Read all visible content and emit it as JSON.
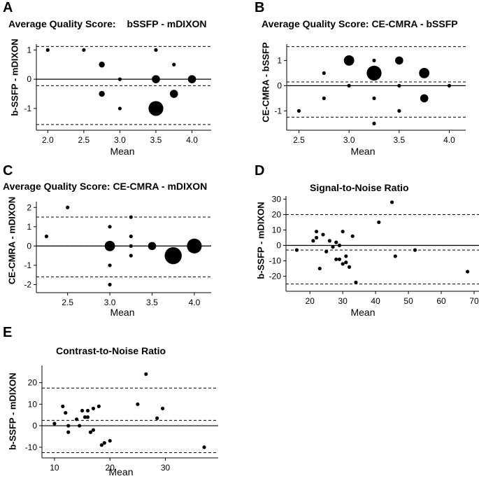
{
  "chart_data": [
    {
      "type": "scatter",
      "panel_label": "A",
      "title": "Average Quality Score:",
      "title_sub": "bSSFP - mDIXON",
      "xlabel": "Mean",
      "ylabel": "b-SSFP - mDIXON",
      "xlim": [
        1.9,
        4.15
      ],
      "ylim": [
        -1.6,
        1.2
      ],
      "xticks": [
        2.0,
        2.5,
        3.0,
        3.5,
        4.0
      ],
      "xtick_labels": [
        "2.0",
        "2.5",
        "3.0",
        "3.5",
        "4.0"
      ],
      "yticks": [
        -1,
        0,
        1
      ],
      "ytick_labels": [
        "-1",
        "0",
        "1"
      ],
      "zero_line": 0,
      "ref_lines": [
        1.12,
        -0.22,
        -1.55
      ],
      "points": [
        {
          "x": 2.0,
          "y": 1,
          "n": 1
        },
        {
          "x": 2.5,
          "y": 1,
          "n": 1
        },
        {
          "x": 2.75,
          "y": 0.5,
          "n": 2
        },
        {
          "x": 2.75,
          "y": -0.5,
          "n": 2
        },
        {
          "x": 3.0,
          "y": 0,
          "n": 1
        },
        {
          "x": 3.0,
          "y": -1,
          "n": 1
        },
        {
          "x": 3.5,
          "y": 1,
          "n": 1
        },
        {
          "x": 3.5,
          "y": 0,
          "n": 3
        },
        {
          "x": 3.5,
          "y": -1,
          "n": 6
        },
        {
          "x": 3.75,
          "y": 0.5,
          "n": 1
        },
        {
          "x": 3.75,
          "y": -0.5,
          "n": 3
        },
        {
          "x": 4.0,
          "y": 0,
          "n": 3
        }
      ]
    },
    {
      "type": "scatter",
      "panel_label": "B",
      "title": "Average Quality Score:",
      "title_sub": "CE-CMRA - bSSFP",
      "xlabel": "Mean",
      "ylabel": "CE-CMRA - bSSFP",
      "xlim": [
        2.42,
        4.08
      ],
      "ylim": [
        -1.6,
        1.65
      ],
      "xticks": [
        2.5,
        3.0,
        3.5,
        4.0
      ],
      "xtick_labels": [
        "2.5",
        "3.0",
        "3.5",
        "4.0"
      ],
      "yticks": [
        -1,
        0,
        1
      ],
      "ytick_labels": [
        "-1",
        "0",
        "1"
      ],
      "zero_line": 0,
      "ref_lines": [
        1.55,
        0.15,
        -1.25
      ],
      "points": [
        {
          "x": 2.5,
          "y": -1,
          "n": 1
        },
        {
          "x": 2.75,
          "y": 0.5,
          "n": 1
        },
        {
          "x": 2.75,
          "y": -0.5,
          "n": 1
        },
        {
          "x": 3.0,
          "y": 1,
          "n": 4
        },
        {
          "x": 3.0,
          "y": 0,
          "n": 1
        },
        {
          "x": 3.25,
          "y": 1,
          "n": 1
        },
        {
          "x": 3.25,
          "y": 0.5,
          "n": 6
        },
        {
          "x": 3.25,
          "y": -0.5,
          "n": 1
        },
        {
          "x": 3.25,
          "y": -1.5,
          "n": 1
        },
        {
          "x": 3.5,
          "y": 1,
          "n": 3
        },
        {
          "x": 3.5,
          "y": 0,
          "n": 1
        },
        {
          "x": 3.5,
          "y": -1,
          "n": 1
        },
        {
          "x": 3.75,
          "y": 0.5,
          "n": 4
        },
        {
          "x": 3.75,
          "y": -0.5,
          "n": 3
        },
        {
          "x": 4.0,
          "y": 0,
          "n": 1
        }
      ]
    },
    {
      "type": "scatter",
      "panel_label": "C",
      "title": "Average Quality Score:",
      "title_sub": "CE-CMRA - mDIXON",
      "xlabel": "Mean",
      "ylabel": "CE-CMRA - mDIXON",
      "xlim": [
        2.18,
        4.1
      ],
      "ylim": [
        -2.2,
        2.3
      ],
      "xticks": [
        2.5,
        3.0,
        3.5,
        4.0
      ],
      "xtick_labels": [
        "2.5",
        "3.0",
        "3.5",
        "4.0"
      ],
      "yticks": [
        -2,
        -1,
        0,
        1,
        2
      ],
      "ytick_labels": [
        "-2",
        "-1",
        "0",
        "1",
        "2"
      ],
      "zero_line": 0,
      "ref_lines": [
        1.5,
        0.0,
        -1.6
      ],
      "points": [
        {
          "x": 2.25,
          "y": 0.5,
          "n": 1
        },
        {
          "x": 2.5,
          "y": 2,
          "n": 1
        },
        {
          "x": 3.0,
          "y": 1,
          "n": 1
        },
        {
          "x": 3.0,
          "y": 0,
          "n": 4
        },
        {
          "x": 3.0,
          "y": -1,
          "n": 1
        },
        {
          "x": 3.0,
          "y": -2,
          "n": 1
        },
        {
          "x": 3.25,
          "y": 1.5,
          "n": 1
        },
        {
          "x": 3.25,
          "y": 0.5,
          "n": 1
        },
        {
          "x": 3.25,
          "y": 0,
          "n": 1
        },
        {
          "x": 3.25,
          "y": -0.5,
          "n": 1
        },
        {
          "x": 3.5,
          "y": 0,
          "n": 3
        },
        {
          "x": 3.75,
          "y": -0.5,
          "n": 7
        },
        {
          "x": 4.0,
          "y": 0,
          "n": 6
        }
      ]
    },
    {
      "type": "scatter",
      "panel_label": "D",
      "title": "Signal-to-Noise Ratio",
      "title_sub": "",
      "xlabel": "Mean",
      "ylabel": "b-SSFP - mDIXON",
      "xlim": [
        14,
        70
      ],
      "ylim": [
        -27,
        32
      ],
      "xticks": [
        20,
        30,
        40,
        50,
        60,
        70
      ],
      "xtick_labels": [
        "20",
        "30",
        "40",
        "50",
        "60",
        "70"
      ],
      "yticks": [
        -20,
        -10,
        0,
        10,
        20,
        30
      ],
      "ytick_labels": [
        "-20",
        "-10",
        "0",
        "10",
        "20",
        "30"
      ],
      "zero_line": 0,
      "ref_lines": [
        20,
        -3,
        -25
      ],
      "points": [
        {
          "x": 16,
          "y": -3,
          "n": 1
        },
        {
          "x": 21,
          "y": 3,
          "n": 1
        },
        {
          "x": 22,
          "y": 9,
          "n": 1
        },
        {
          "x": 22,
          "y": 5,
          "n": 1
        },
        {
          "x": 23,
          "y": -15,
          "n": 1
        },
        {
          "x": 24,
          "y": 7,
          "n": 1
        },
        {
          "x": 25,
          "y": -4,
          "n": 1
        },
        {
          "x": 26,
          "y": 3,
          "n": 1
        },
        {
          "x": 27,
          "y": -1,
          "n": 1
        },
        {
          "x": 28,
          "y": 2,
          "n": 1
        },
        {
          "x": 28,
          "y": -9,
          "n": 1
        },
        {
          "x": 29,
          "y": 0,
          "n": 1
        },
        {
          "x": 29,
          "y": -9,
          "n": 1
        },
        {
          "x": 30,
          "y": 9,
          "n": 1
        },
        {
          "x": 30,
          "y": -12,
          "n": 1
        },
        {
          "x": 31,
          "y": -7,
          "n": 1
        },
        {
          "x": 31,
          "y": -11,
          "n": 1
        },
        {
          "x": 32,
          "y": -14,
          "n": 1
        },
        {
          "x": 33,
          "y": 6,
          "n": 1
        },
        {
          "x": 34,
          "y": -24,
          "n": 1
        },
        {
          "x": 41,
          "y": 15,
          "n": 1
        },
        {
          "x": 45,
          "y": 28,
          "n": 1
        },
        {
          "x": 46,
          "y": -7,
          "n": 1
        },
        {
          "x": 52,
          "y": -3,
          "n": 1
        },
        {
          "x": 68,
          "y": -17,
          "n": 1
        }
      ]
    },
    {
      "type": "scatter",
      "panel_label": "E",
      "title": "Contrast-to-Noise Ratio",
      "title_sub": "",
      "xlabel": "Mean",
      "ylabel": "b-SSFP - mDIXON",
      "xlim": [
        8.5,
        38
      ],
      "ylim": [
        -13,
        28
      ],
      "xticks": [
        10,
        20,
        30
      ],
      "xtick_labels": [
        "10",
        "20",
        "30"
      ],
      "yticks": [
        -10,
        0,
        10,
        20
      ],
      "ytick_labels": [
        "-10",
        "0",
        "10",
        "20"
      ],
      "zero_line": 0,
      "ref_lines": [
        17.5,
        2.5,
        -12.5
      ],
      "points": [
        {
          "x": 10,
          "y": 1,
          "n": 1
        },
        {
          "x": 11.5,
          "y": 9,
          "n": 1
        },
        {
          "x": 12,
          "y": 6,
          "n": 1
        },
        {
          "x": 12.5,
          "y": 0,
          "n": 1
        },
        {
          "x": 12.5,
          "y": -3,
          "n": 1
        },
        {
          "x": 14,
          "y": 3,
          "n": 1
        },
        {
          "x": 14.5,
          "y": 0,
          "n": 1
        },
        {
          "x": 15,
          "y": 7,
          "n": 1
        },
        {
          "x": 15.5,
          "y": 4,
          "n": 1
        },
        {
          "x": 16,
          "y": 7,
          "n": 1
        },
        {
          "x": 16,
          "y": 4,
          "n": 1
        },
        {
          "x": 16.5,
          "y": -3,
          "n": 1
        },
        {
          "x": 17,
          "y": 8,
          "n": 1
        },
        {
          "x": 17,
          "y": -2,
          "n": 1
        },
        {
          "x": 18,
          "y": 9,
          "n": 1
        },
        {
          "x": 18.5,
          "y": -9,
          "n": 1
        },
        {
          "x": 19,
          "y": -8,
          "n": 1
        },
        {
          "x": 20,
          "y": -7,
          "n": 1
        },
        {
          "x": 25,
          "y": 10,
          "n": 1
        },
        {
          "x": 26.5,
          "y": 24,
          "n": 1
        },
        {
          "x": 28.5,
          "y": 3.5,
          "n": 1
        },
        {
          "x": 29.5,
          "y": 8,
          "n": 1
        },
        {
          "x": 37,
          "y": -10,
          "n": 1
        }
      ]
    }
  ]
}
